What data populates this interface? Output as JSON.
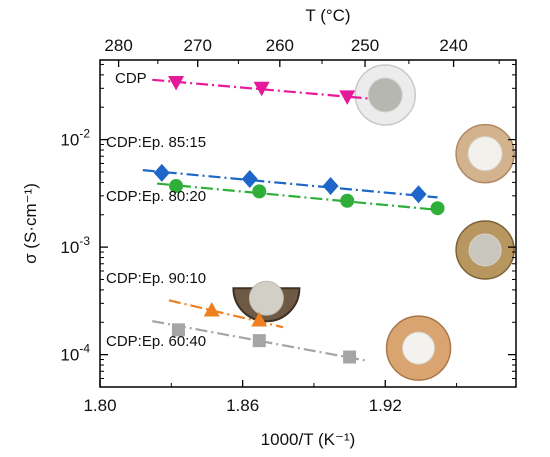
{
  "chart_data": {
    "type": "scatter",
    "xlabel": "1000/T (K⁻¹)",
    "x2label": "T (°C)",
    "ylabel": "σ (S·cm⁻¹)",
    "xlim": [
      1.8,
      1.975
    ],
    "ylim": [
      5e-05,
      0.055
    ],
    "yscale": "log",
    "x_ticks": [
      {
        "value": 1.8,
        "label": "1.80"
      },
      {
        "value": 1.86,
        "label": "1.86"
      },
      {
        "value": 1.92,
        "label": "1.92"
      }
    ],
    "y_ticks": [
      {
        "value": 0.0001,
        "label": "10",
        "sup": "-4"
      },
      {
        "value": 0.001,
        "label": "10",
        "sup": "-3"
      },
      {
        "value": 0.01,
        "label": "10",
        "sup": "-2"
      }
    ],
    "top_ticks": [
      {
        "value": 280,
        "label": "280"
      },
      {
        "value": 270,
        "label": "270"
      },
      {
        "value": 260,
        "label": "260"
      },
      {
        "value": 250,
        "label": "250"
      },
      {
        "value": 240,
        "label": "240"
      }
    ],
    "grid": false,
    "series": [
      {
        "name": "CDP",
        "color": "#e6199a",
        "marker": "triangle-down",
        "x": [
          1.832,
          1.868,
          1.904
        ],
        "y": [
          0.034,
          0.03,
          0.025
        ],
        "fit": [
          [
            1.822,
            0.036
          ],
          [
            1.914,
            0.024
          ]
        ]
      },
      {
        "name": "CDP:Ep. 85:15",
        "color": "#1e66c8",
        "marker": "diamond",
        "x": [
          1.826,
          1.863,
          1.897,
          1.934
        ],
        "y": [
          0.0049,
          0.0043,
          0.0037,
          0.0031
        ],
        "fit": [
          [
            1.818,
            0.0052
          ],
          [
            1.942,
            0.0029
          ]
        ]
      },
      {
        "name": "CDP:Ep. 80:20",
        "color": "#2fae3a",
        "marker": "circle",
        "x": [
          1.832,
          1.867,
          1.904,
          1.942
        ],
        "y": [
          0.0037,
          0.0033,
          0.0027,
          0.0023
        ],
        "fit": [
          [
            1.824,
            0.0039
          ],
          [
            1.944,
            0.0022
          ]
        ]
      },
      {
        "name": "CDP:Ep. 90:10",
        "color": "#f07f1f",
        "marker": "triangle-up",
        "x": [
          1.847,
          1.867
        ],
        "y": [
          0.00026,
          0.00021
        ],
        "fit": [
          [
            1.829,
            0.00032
          ],
          [
            1.877,
            0.00018
          ]
        ]
      },
      {
        "name": "CDP:Ep. 60:40",
        "color": "#a5a5a5",
        "marker": "square",
        "x": [
          1.833,
          1.867,
          1.905
        ],
        "y": [
          0.00017,
          0.000135,
          9.5e-05
        ],
        "fit": [
          [
            1.822,
            0.000205
          ],
          [
            1.912,
            8.8e-05
          ]
        ]
      }
    ],
    "photos": [
      {
        "name": "cdp-pellet-photo",
        "x": 1.92,
        "y": 0.026,
        "rim": "#ececec",
        "rimEdge": "#c9c9c9",
        "core": "#b7b7b2",
        "shape": "disc",
        "r": 30,
        "coreR": 17
      },
      {
        "name": "cdp-ep-85-15-pellet-photo",
        "x": 1.962,
        "y": 0.0074,
        "rim": "#d3b28e",
        "rimEdge": "#b08a63",
        "core": "#f3f1ec",
        "shape": "disc",
        "r": 29,
        "coreR": 17
      },
      {
        "name": "cdp-ep-80-20-pellet-photo",
        "x": 1.962,
        "y": 0.00094,
        "rim": "#b7965f",
        "rimEdge": "#7d6238",
        "core": "#c9c6bd",
        "shape": "disc",
        "r": 29,
        "coreR": 16
      },
      {
        "name": "cdp-ep-90-10-pellet-photo",
        "x": 1.87,
        "y": 0.00038,
        "rim": "#6e5a44",
        "rimEdge": "#3f3125",
        "core": "#d2cfc6",
        "shape": "half",
        "r": 33,
        "coreR": 17
      },
      {
        "name": "cdp-ep-60-40-pellet-photo",
        "x": 1.934,
        "y": 0.000115,
        "rim": "#d9a46f",
        "rimEdge": "#a8774a",
        "core": "#f4f2ee",
        "shape": "disc",
        "r": 32,
        "coreR": 16
      }
    ]
  }
}
